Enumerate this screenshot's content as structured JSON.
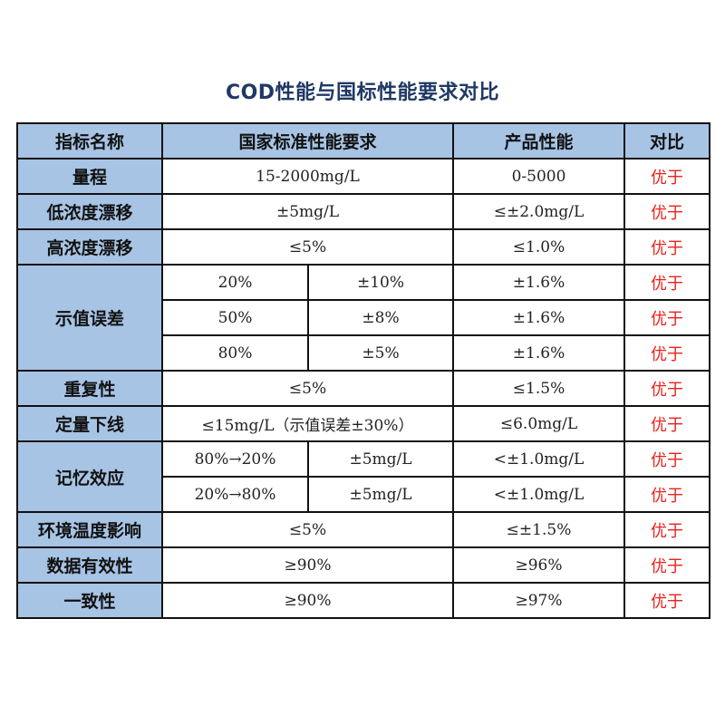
{
  "title": "COD性能与国标性能要求对比",
  "colors": {
    "header_bg": "#a7c4e5",
    "result_text": "#e8231b",
    "title_text": "#1f3864"
  },
  "headers": {
    "name": "指标名称",
    "standard": "国家标准性能要求",
    "product": "产品性能",
    "compare": "对比"
  },
  "rows": {
    "range": {
      "label": "量程",
      "standard": "15-2000mg/L",
      "product": "0-5000",
      "result": "优于"
    },
    "low_drift": {
      "label": "低浓度漂移",
      "standard": "±5mg/L",
      "product": "≤±2.0mg/L",
      "result": "优于"
    },
    "high_drift": {
      "label": "高浓度漂移",
      "standard": "≤5%",
      "product": "≤1.0%",
      "result": "优于"
    },
    "indication_error": {
      "label": "示值误差",
      "items": [
        {
          "level": "20%",
          "standard": "±10%",
          "product": "±1.6%",
          "result": "优于"
        },
        {
          "level": "50%",
          "standard": "±8%",
          "product": "±1.6%",
          "result": "优于"
        },
        {
          "level": "80%",
          "standard": "±5%",
          "product": "±1.6%",
          "result": "优于"
        }
      ]
    },
    "repeatability": {
      "label": "重复性",
      "standard": "≤5%",
      "product": "≤1.5%",
      "result": "优于"
    },
    "lower_limit": {
      "label": "定量下线",
      "standard": "≤15mg/L（示值误差±30%）",
      "product": "≤6.0mg/L",
      "result": "优于"
    },
    "memory_effect": {
      "label": "记忆效应",
      "items": [
        {
          "level": "80%→20%",
          "standard": "±5mg/L",
          "product": "<±1.0mg/L",
          "result": "优于"
        },
        {
          "level": "20%→80%",
          "standard": "±5mg/L",
          "product": "<±1.0mg/L",
          "result": "优于"
        }
      ]
    },
    "temperature": {
      "label": "环境温度影响",
      "standard": "≤5%",
      "product": "≤±1.5%",
      "result": "优于"
    },
    "data_validity": {
      "label": "数据有效性",
      "standard": "≥90%",
      "product": "≥96%",
      "result": "优于"
    },
    "consistency": {
      "label": "一致性",
      "standard": "≥90%",
      "product": "≥97%",
      "result": "优于"
    }
  }
}
